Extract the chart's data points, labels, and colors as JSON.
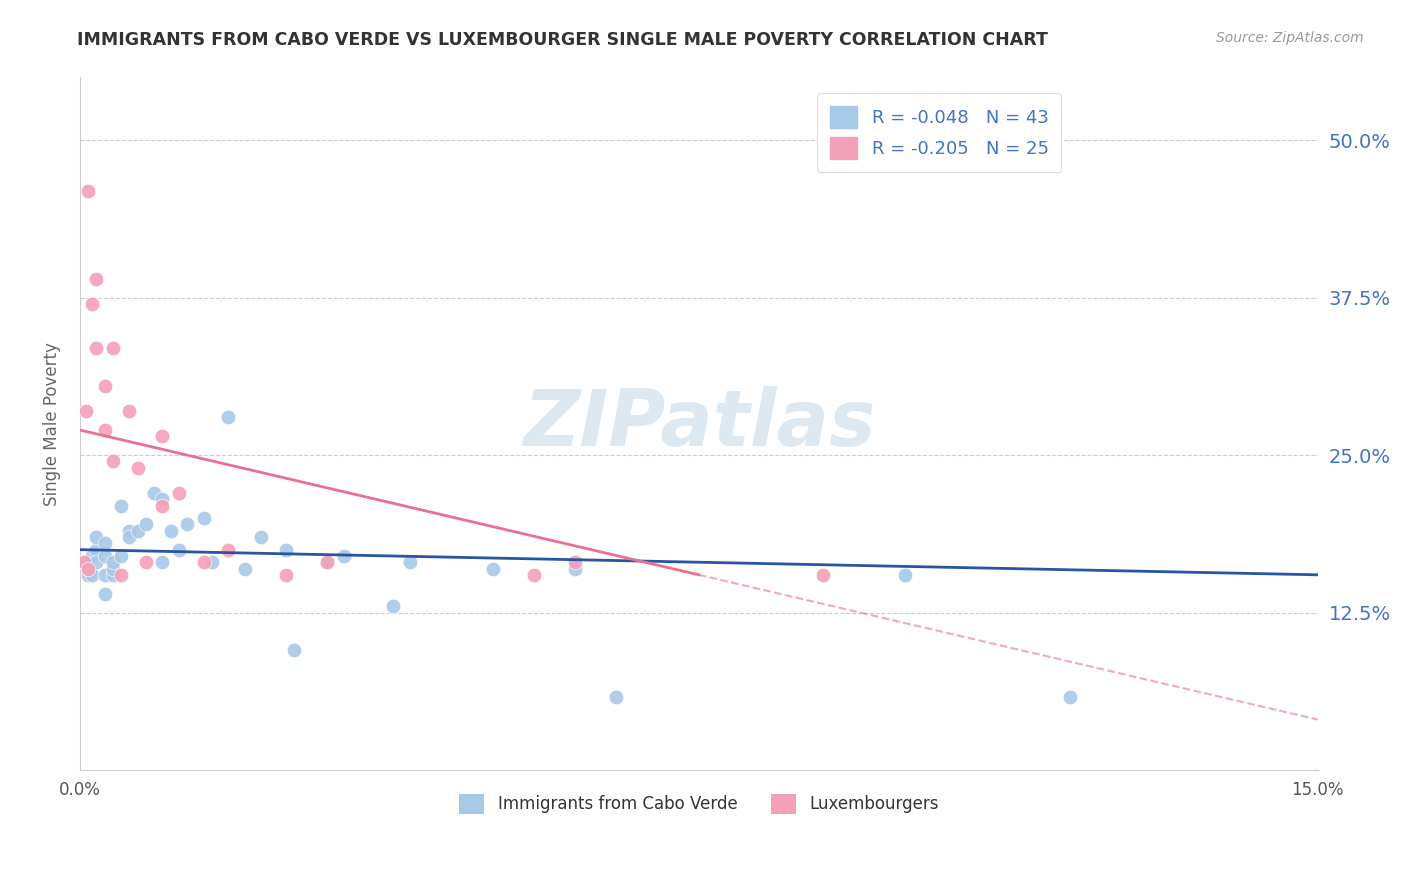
{
  "title": "IMMIGRANTS FROM CABO VERDE VS LUXEMBOURGER SINGLE MALE POVERTY CORRELATION CHART",
  "source": "Source: ZipAtlas.com",
  "ylabel": "Single Male Poverty",
  "watermark": "ZIPatlas",
  "legend_labels": [
    "Immigrants from Cabo Verde",
    "Luxembourgers"
  ],
  "xmin": 0.0,
  "xmax": 0.15,
  "ymin": 0.0,
  "ymax": 0.55,
  "yticks": [
    0.125,
    0.25,
    0.375,
    0.5
  ],
  "ytick_labels": [
    "12.5%",
    "25.0%",
    "37.5%",
    "50.0%"
  ],
  "xticks": [
    0.0,
    0.15
  ],
  "xtick_labels": [
    "0.0%",
    "15.0%"
  ],
  "cabo_verde_x": [
    0.0005,
    0.001,
    0.001,
    0.0015,
    0.0015,
    0.002,
    0.002,
    0.002,
    0.003,
    0.003,
    0.003,
    0.003,
    0.004,
    0.004,
    0.004,
    0.005,
    0.005,
    0.006,
    0.006,
    0.007,
    0.008,
    0.009,
    0.01,
    0.01,
    0.011,
    0.012,
    0.013,
    0.015,
    0.016,
    0.018,
    0.02,
    0.022,
    0.025,
    0.026,
    0.03,
    0.032,
    0.038,
    0.04,
    0.05,
    0.06,
    0.065,
    0.1,
    0.12
  ],
  "cabo_verde_y": [
    0.165,
    0.155,
    0.16,
    0.17,
    0.155,
    0.175,
    0.165,
    0.185,
    0.155,
    0.17,
    0.14,
    0.18,
    0.155,
    0.16,
    0.165,
    0.17,
    0.21,
    0.19,
    0.185,
    0.19,
    0.195,
    0.22,
    0.215,
    0.165,
    0.19,
    0.175,
    0.195,
    0.2,
    0.165,
    0.28,
    0.16,
    0.185,
    0.175,
    0.095,
    0.165,
    0.17,
    0.13,
    0.165,
    0.16,
    0.16,
    0.058,
    0.155,
    0.058
  ],
  "luxembourger_x": [
    0.0005,
    0.0008,
    0.001,
    0.001,
    0.0015,
    0.002,
    0.002,
    0.003,
    0.003,
    0.004,
    0.004,
    0.005,
    0.006,
    0.007,
    0.008,
    0.01,
    0.01,
    0.012,
    0.015,
    0.018,
    0.025,
    0.03,
    0.055,
    0.06,
    0.09
  ],
  "luxembourger_y": [
    0.165,
    0.285,
    0.46,
    0.16,
    0.37,
    0.39,
    0.335,
    0.305,
    0.27,
    0.335,
    0.245,
    0.155,
    0.285,
    0.24,
    0.165,
    0.265,
    0.21,
    0.22,
    0.165,
    0.175,
    0.155,
    0.165,
    0.155,
    0.165,
    0.155
  ],
  "cabo_verde_color": "#a8c8e8",
  "luxembourger_color": "#f4a0b8",
  "cabo_verde_line_color": "#2855a0",
  "luxembourger_line_color": "#e87090",
  "title_color": "#333333",
  "source_color": "#999999",
  "axis_color": "#cccccc",
  "grid_color": "#cccccc",
  "watermark_color": "#dde8f0",
  "ylabel_color": "#666666",
  "right_tick_color": "#4472c4"
}
